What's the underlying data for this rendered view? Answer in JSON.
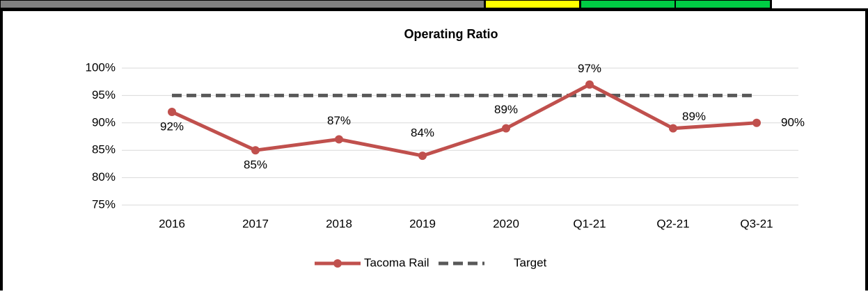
{
  "chart_data": {
    "type": "line",
    "title": "Operating Ratio",
    "categories": [
      "2016",
      "2017",
      "2018",
      "2019",
      "2020",
      "Q1-21",
      "Q2-21",
      "Q3-21"
    ],
    "series": [
      {
        "name": "Tacoma Rail",
        "color": "#c0504d",
        "values": [
          92,
          85,
          87,
          84,
          89,
          97,
          89,
          90
        ],
        "value_labels": [
          "92%",
          "85%",
          "87%",
          "84%",
          "89%",
          "97%",
          "89%",
          "90%"
        ]
      },
      {
        "name": "Target",
        "color": "#595959",
        "dashed": true,
        "values": [
          95,
          95,
          95,
          95,
          95,
          95,
          95,
          95
        ]
      }
    ],
    "ylim": [
      75,
      100
    ],
    "yticks": [
      {
        "value": 75,
        "label": "75%"
      },
      {
        "value": 80,
        "label": "80%"
      },
      {
        "value": 85,
        "label": "85%"
      },
      {
        "value": 90,
        "label": "90%"
      },
      {
        "value": 95,
        "label": "95%"
      },
      {
        "value": 100,
        "label": "100%"
      }
    ],
    "grid": true,
    "legend": "bottom"
  }
}
